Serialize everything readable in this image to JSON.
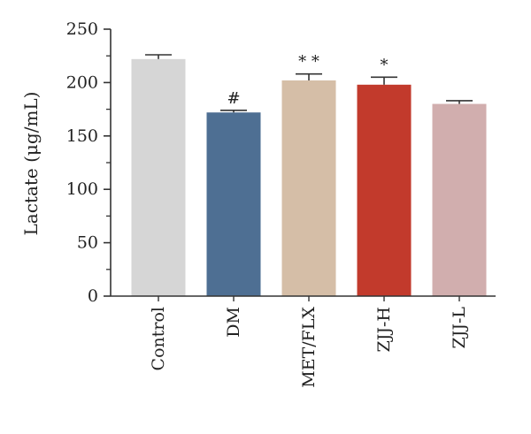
{
  "chart_data": {
    "type": "bar",
    "title": "",
    "xlabel": "",
    "ylabel": "Lactate (μg/mL)",
    "ylim": [
      0,
      250
    ],
    "yticks": [
      0,
      50,
      100,
      150,
      200,
      250
    ],
    "categories": [
      "Control",
      "DM",
      "MET/FLX",
      "ZJJ-H",
      "ZJJ-L"
    ],
    "values": [
      222,
      172,
      202,
      198,
      180
    ],
    "errors": [
      4,
      2,
      6,
      7,
      3
    ],
    "annotations": [
      "",
      "#",
      "* *",
      "*",
      ""
    ],
    "colors": [
      "#d6d6d6",
      "#4e6f93",
      "#d5bea7",
      "#c23a2c",
      "#d1aeae"
    ],
    "grid": false,
    "legend": "none"
  }
}
